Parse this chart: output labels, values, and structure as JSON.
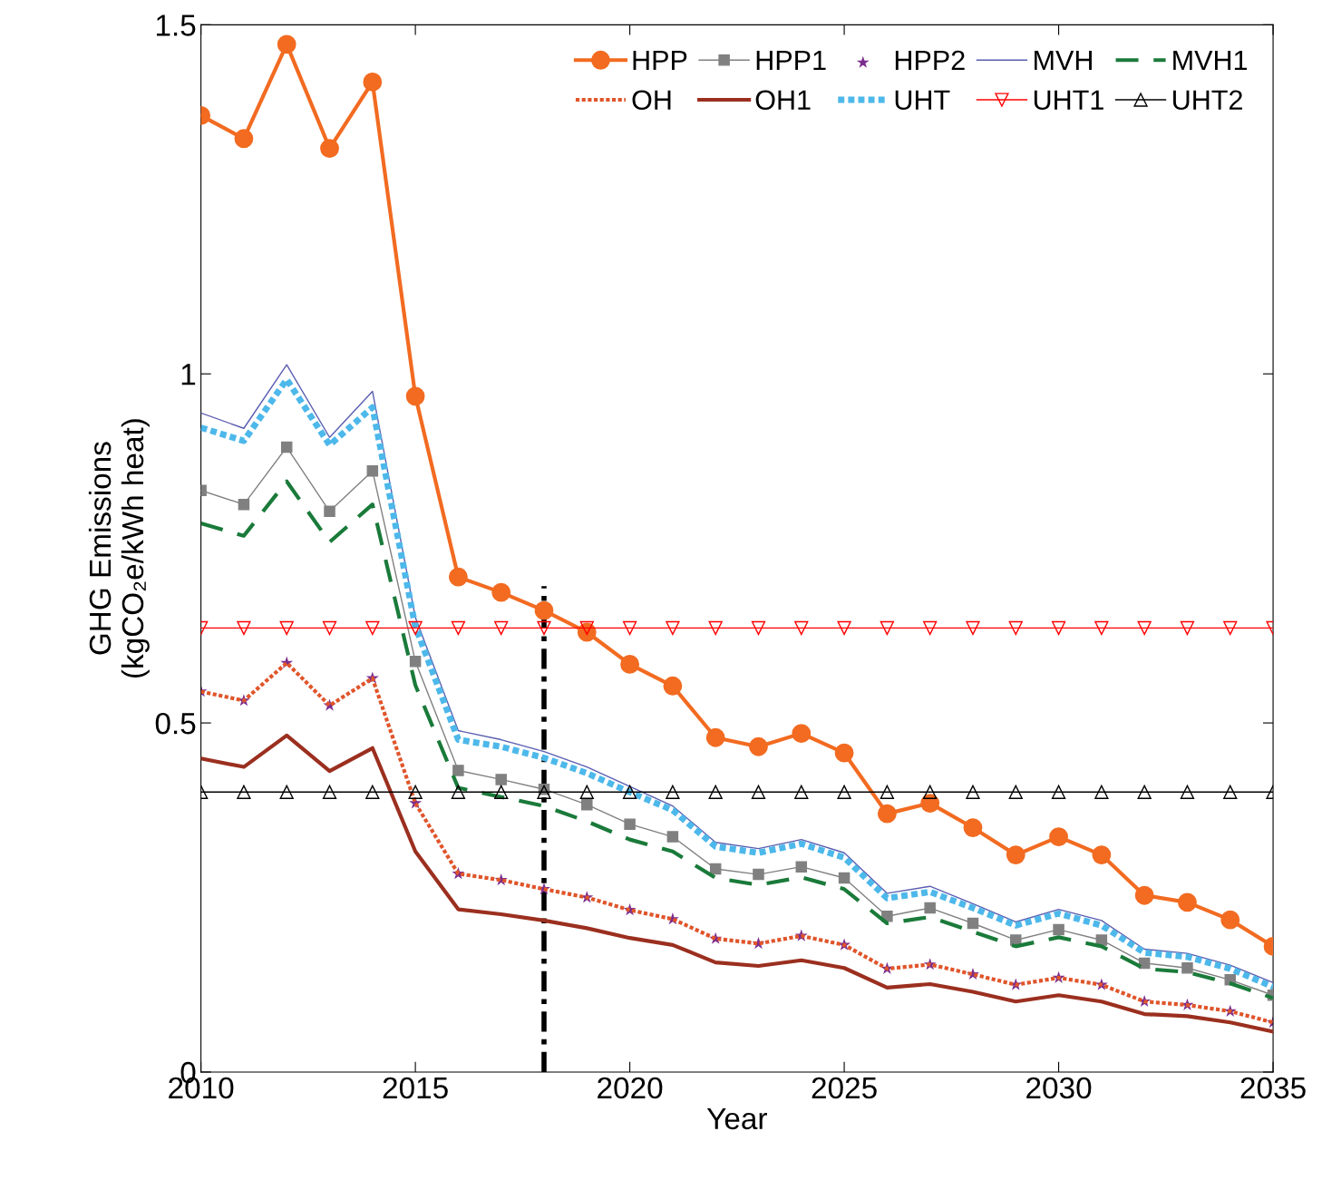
{
  "chart_data": {
    "type": "line",
    "xlabel": "Year",
    "ylabel": "GHG Emissions\n(kgCO₂e/kWh heat)",
    "x": [
      2010,
      2011,
      2012,
      2013,
      2014,
      2015,
      2016,
      2017,
      2018,
      2019,
      2020,
      2021,
      2022,
      2023,
      2024,
      2025,
      2026,
      2027,
      2028,
      2029,
      2030,
      2031,
      2032,
      2033,
      2034,
      2035
    ],
    "xlim": [
      2010,
      2035
    ],
    "xticks": [
      2010,
      2015,
      2020,
      2025,
      2030,
      2035
    ],
    "ylim": [
      0,
      1.5
    ],
    "yticks": [
      0,
      0.5,
      1,
      1.5
    ],
    "grid": false,
    "legend": "top right",
    "series": [
      {
        "name": "HPP",
        "color": "#f26b21",
        "marker": "circle",
        "line_style": "solid",
        "values": [
          1.37,
          1.337,
          1.472,
          1.323,
          1.418,
          0.968,
          0.709,
          0.687,
          0.661,
          0.63,
          0.584,
          0.553,
          0.479,
          0.466,
          0.485,
          0.457,
          0.37,
          0.385,
          0.35,
          0.311,
          0.337,
          0.311,
          0.253,
          0.243,
          0.218,
          0.18
        ]
      },
      {
        "name": "HPP1",
        "color": "#808080",
        "marker": "square",
        "line_style": "solid",
        "values": [
          0.833,
          0.813,
          0.895,
          0.803,
          0.861,
          0.588,
          0.432,
          0.419,
          0.405,
          0.383,
          0.355,
          0.337,
          0.291,
          0.283,
          0.294,
          0.278,
          0.223,
          0.235,
          0.213,
          0.189,
          0.204,
          0.189,
          0.156,
          0.149,
          0.132,
          0.11
        ]
      },
      {
        "name": "HPP2",
        "type": "scatter",
        "color": "#7b2d8e",
        "marker": "star",
        "values": [
          0.545,
          0.532,
          0.586,
          0.525,
          0.564,
          0.385,
          0.284,
          0.275,
          0.262,
          0.25,
          0.232,
          0.219,
          0.191,
          0.184,
          0.195,
          0.182,
          0.148,
          0.154,
          0.14,
          0.125,
          0.135,
          0.125,
          0.101,
          0.096,
          0.087,
          0.071
        ]
      },
      {
        "name": "MVH",
        "color": "#5a5db0",
        "marker": "none",
        "line_style": "solid",
        "values": [
          0.944,
          0.922,
          1.013,
          0.909,
          0.975,
          0.651,
          0.489,
          0.476,
          0.459,
          0.437,
          0.409,
          0.381,
          0.329,
          0.32,
          0.333,
          0.314,
          0.256,
          0.266,
          0.241,
          0.215,
          0.233,
          0.217,
          0.176,
          0.17,
          0.153,
          0.128
        ]
      },
      {
        "name": "MVH1",
        "color": "#1a7a3a",
        "marker": "none",
        "line_style": "dashed",
        "values": [
          0.786,
          0.768,
          0.846,
          0.759,
          0.813,
          0.554,
          0.407,
          0.394,
          0.381,
          0.359,
          0.333,
          0.316,
          0.278,
          0.268,
          0.279,
          0.262,
          0.213,
          0.222,
          0.201,
          0.18,
          0.193,
          0.18,
          0.148,
          0.143,
          0.127,
          0.106
        ]
      },
      {
        "name": "OH",
        "color": "#e0552a",
        "marker": "none",
        "line_style": "dotted",
        "values": [
          0.545,
          0.532,
          0.586,
          0.525,
          0.564,
          0.385,
          0.284,
          0.275,
          0.262,
          0.25,
          0.232,
          0.219,
          0.191,
          0.184,
          0.195,
          0.182,
          0.148,
          0.154,
          0.14,
          0.125,
          0.135,
          0.125,
          0.101,
          0.096,
          0.087,
          0.071
        ]
      },
      {
        "name": "OH1",
        "color": "#9b2f1f",
        "marker": "none",
        "line_style": "solid",
        "values": [
          0.449,
          0.437,
          0.482,
          0.431,
          0.464,
          0.316,
          0.233,
          0.226,
          0.217,
          0.206,
          0.192,
          0.182,
          0.157,
          0.152,
          0.16,
          0.149,
          0.121,
          0.126,
          0.115,
          0.101,
          0.11,
          0.101,
          0.083,
          0.08,
          0.071,
          0.058
        ]
      },
      {
        "name": "UHT",
        "color": "#4db8ea",
        "marker": "none",
        "line_style": "dotted",
        "values": [
          0.923,
          0.904,
          0.992,
          0.898,
          0.952,
          0.638,
          0.476,
          0.466,
          0.45,
          0.428,
          0.401,
          0.375,
          0.323,
          0.314,
          0.327,
          0.307,
          0.249,
          0.258,
          0.235,
          0.21,
          0.227,
          0.21,
          0.171,
          0.165,
          0.148,
          0.122
        ]
      },
      {
        "name": "UHT1",
        "color": "#ff0000",
        "marker": "triangle_down",
        "line_style": "solid",
        "values": [
          0.636,
          0.636,
          0.636,
          0.636,
          0.636,
          0.636,
          0.636,
          0.636,
          0.636,
          0.636,
          0.636,
          0.636,
          0.636,
          0.636,
          0.636,
          0.636,
          0.636,
          0.636,
          0.636,
          0.636,
          0.636,
          0.636,
          0.636,
          0.636,
          0.636,
          0.636
        ]
      },
      {
        "name": "UHT2",
        "color": "#000000",
        "marker": "triangle",
        "line_style": "solid",
        "values": [
          0.401,
          0.401,
          0.401,
          0.401,
          0.401,
          0.401,
          0.401,
          0.401,
          0.401,
          0.401,
          0.401,
          0.401,
          0.401,
          0.401,
          0.401,
          0.401,
          0.401,
          0.401,
          0.401,
          0.401,
          0.401,
          0.401,
          0.401,
          0.401,
          0.401,
          0.401
        ]
      },
      {
        "color": "#000000",
        "marker": "none",
        "line_style": "dashdot",
        "x": [
          2018,
          2018
        ],
        "values": [
          0,
          0.696
        ]
      }
    ]
  }
}
